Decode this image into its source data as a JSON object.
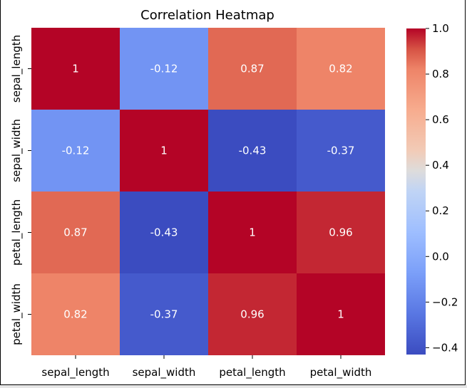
{
  "chart_data": {
    "type": "heatmap",
    "title": "Correlation Heatmap",
    "xlabel": "",
    "ylabel": "",
    "x_categories": [
      "sepal_length",
      "sepal_width",
      "petal_length",
      "petal_width"
    ],
    "y_categories": [
      "sepal_length",
      "sepal_width",
      "petal_length",
      "petal_width"
    ],
    "values": [
      [
        1.0,
        -0.12,
        0.87,
        0.82
      ],
      [
        -0.12,
        1.0,
        -0.43,
        -0.37
      ],
      [
        0.87,
        -0.43,
        1.0,
        0.96
      ],
      [
        0.82,
        -0.37,
        0.96,
        1.0
      ]
    ],
    "annotations": [
      [
        "1",
        "-0.12",
        "0.87",
        "0.82"
      ],
      [
        "-0.12",
        "1",
        "-0.43",
        "-0.37"
      ],
      [
        "0.87",
        "-0.43",
        "1",
        "0.96"
      ],
      [
        "0.82",
        "-0.37",
        "0.96",
        "1"
      ]
    ],
    "colormap": "coolwarm",
    "colorbar": {
      "vmin": -0.43,
      "vmax": 1.0,
      "ticks": [
        1.0,
        0.8,
        0.6,
        0.4,
        0.2,
        0.0,
        -0.2,
        -0.4
      ],
      "tick_labels": [
        "1.0",
        "0.8",
        "0.6",
        "0.4",
        "0.2",
        "0.0",
        "−0.2",
        "−0.4"
      ]
    }
  }
}
